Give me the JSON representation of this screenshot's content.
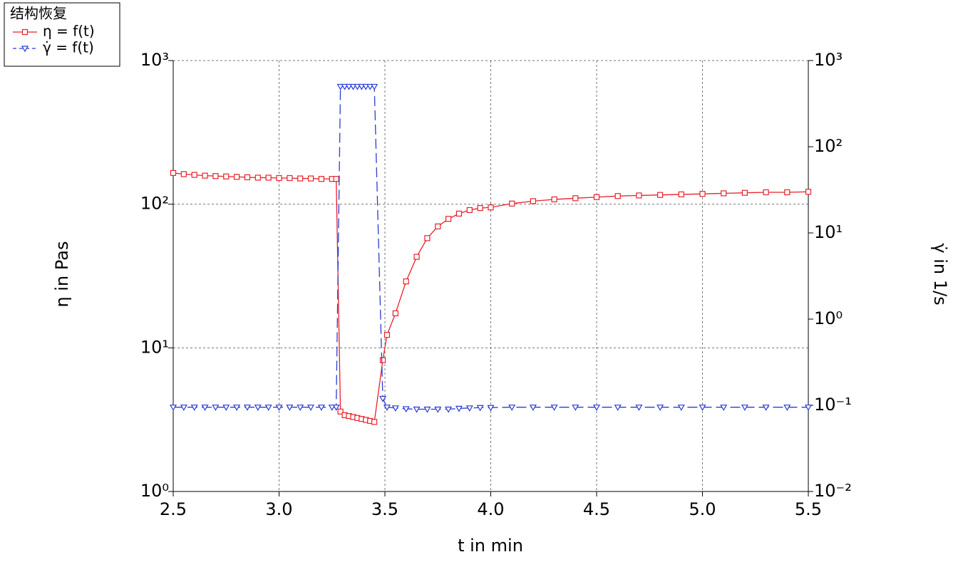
{
  "chart_data": {
    "type": "line",
    "legend_title": "结构恢复",
    "xlabel": "t in min",
    "ylabel": "η in Pas",
    "y2label": "γ̇ in 1/s",
    "log": true,
    "grid": true,
    "x": [
      2.5,
      2.55,
      2.6,
      2.65,
      2.7,
      2.75,
      2.8,
      2.85,
      2.9,
      2.95,
      3.0,
      3.05,
      3.1,
      3.15,
      3.2,
      3.25,
      3.27,
      3.29,
      3.31,
      3.33,
      3.35,
      3.37,
      3.39,
      3.41,
      3.43,
      3.45,
      3.49,
      3.51,
      3.55,
      3.6,
      3.65,
      3.7,
      3.75,
      3.8,
      3.85,
      3.9,
      3.95,
      4.0,
      4.1,
      4.2,
      4.3,
      4.4,
      4.5,
      4.6,
      4.7,
      4.8,
      4.9,
      5.0,
      5.1,
      5.2,
      5.3,
      5.4,
      5.5
    ],
    "series": [
      {
        "name": "η = f(t)",
        "color": "#e8212a",
        "marker": "square",
        "dash": false,
        "values": [
          165,
          162,
          160,
          158,
          157,
          156,
          155,
          154,
          153,
          153,
          152,
          152,
          151,
          151,
          150,
          150,
          150,
          3.6,
          3.4,
          3.35,
          3.3,
          3.25,
          3.2,
          3.15,
          3.1,
          3.05,
          8.2,
          12.3,
          17.4,
          29,
          43,
          58,
          70,
          79,
          86,
          91,
          94,
          95,
          101,
          105,
          108,
          110,
          112,
          114,
          115,
          116,
          117,
          118,
          119,
          120,
          121,
          121,
          122
        ]
      },
      {
        "name": "γ̇ = f(t)",
        "color": "#2a3cd6",
        "marker": "triangle-down",
        "dash": true,
        "axis": "y2",
        "values": [
          0.095,
          0.095,
          0.095,
          0.095,
          0.095,
          0.095,
          0.095,
          0.095,
          0.095,
          0.095,
          0.095,
          0.095,
          0.095,
          0.095,
          0.095,
          0.095,
          0.095,
          500,
          500,
          500,
          500,
          500,
          500,
          500,
          500,
          500,
          0.12,
          0.095,
          0.093,
          0.091,
          0.09,
          0.09,
          0.09,
          0.09,
          0.092,
          0.093,
          0.094,
          0.094,
          0.095,
          0.095,
          0.095,
          0.095,
          0.095,
          0.095,
          0.095,
          0.095,
          0.095,
          0.095,
          0.095,
          0.095,
          0.095,
          0.095,
          0.095
        ]
      }
    ],
    "xlim": [
      2.5,
      5.5
    ],
    "xticks": [
      2.5,
      {
        "value": 3,
        "label": "3.0"
      },
      3.5,
      {
        "value": 4,
        "label": "4.0"
      },
      4.5,
      {
        "value": 5,
        "label": "5.0"
      },
      5.5
    ],
    "ylim": [
      1,
      1000
    ],
    "yticks": [
      {
        "value": 1,
        "label": "10⁰"
      },
      {
        "value": 10,
        "label": "10¹"
      },
      {
        "value": 100,
        "label": "10²"
      },
      {
        "value": 1000,
        "label": "10³"
      }
    ],
    "y2lim": [
      0.01,
      1000
    ],
    "y2ticks": [
      {
        "value": 0.01,
        "label": "10⁻²"
      },
      {
        "value": 0.1,
        "label": "10⁻¹"
      },
      {
        "value": 1,
        "label": "10⁰"
      },
      {
        "value": 10,
        "label": "10¹"
      },
      {
        "value": 100,
        "label": "10²"
      },
      {
        "value": 1000,
        "label": "10³"
      }
    ]
  }
}
